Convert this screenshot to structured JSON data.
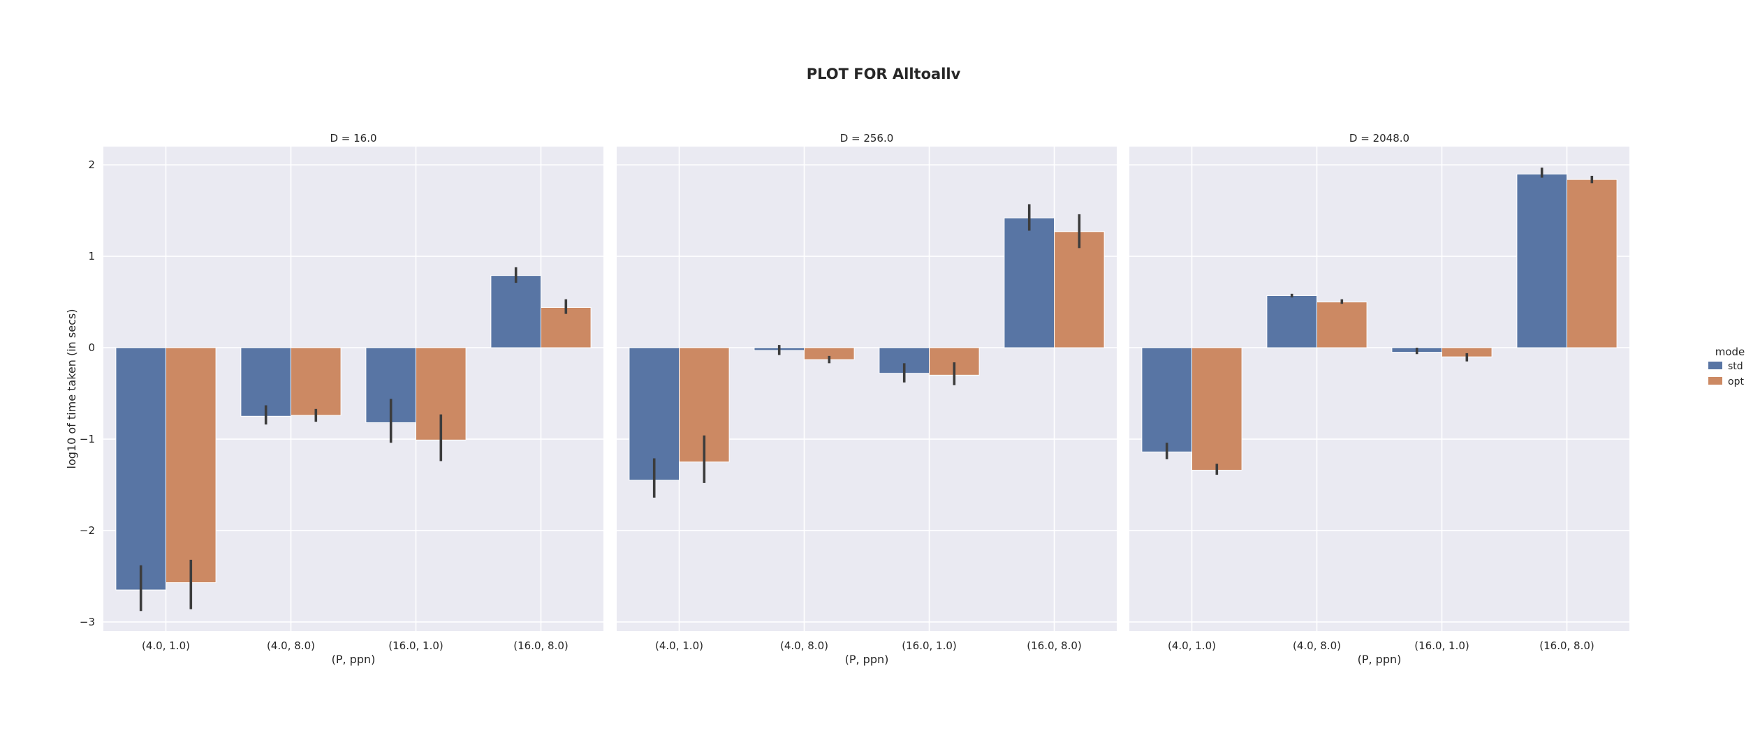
{
  "figure": {
    "title": "PLOT FOR Alltoallv"
  },
  "legend": {
    "title": "mode",
    "placement": "right",
    "entries": [
      {
        "label": "std",
        "color": "#5875a4"
      },
      {
        "label": "opt",
        "color": "#cc8963"
      }
    ]
  },
  "colors": {
    "panel_background": "#eaeaf2",
    "grid": "#ffffff",
    "error_bar": "#3c3c3c"
  },
  "chart_data": [
    {
      "type": "bar",
      "title": "D = 16.0",
      "xlabel": "(P, ppn)",
      "ylabel": "log10 of time taken (in secs)",
      "ylim": [
        -3.1,
        2.2
      ],
      "yticks": [
        2,
        1,
        0,
        -1,
        -2,
        -3
      ],
      "ytick_labels": [
        "2",
        "1",
        "0",
        "−1",
        "−2",
        "−3"
      ],
      "grid": true,
      "categories": [
        "(4.0, 1.0)",
        "(4.0, 8.0)",
        "(16.0, 1.0)",
        "(16.0, 8.0)"
      ],
      "series": [
        {
          "name": "std",
          "values": [
            -2.65,
            -0.75,
            -0.82,
            0.79
          ],
          "err_low": [
            -2.88,
            -0.84,
            -1.04,
            0.71
          ],
          "err_high": [
            -2.38,
            -0.63,
            -0.56,
            0.88
          ]
        },
        {
          "name": "opt",
          "values": [
            -2.57,
            -0.74,
            -1.01,
            0.44
          ],
          "err_low": [
            -2.86,
            -0.81,
            -1.24,
            0.37
          ],
          "err_high": [
            -2.32,
            -0.67,
            -0.73,
            0.53
          ]
        }
      ]
    },
    {
      "type": "bar",
      "title": "D = 256.0",
      "xlabel": "(P, ppn)",
      "ylabel": "",
      "ylim": [
        -3.1,
        2.2
      ],
      "yticks": [
        2,
        1,
        0,
        -1,
        -2,
        -3
      ],
      "ytick_labels": [
        "",
        "",
        "",
        "",
        "",
        ""
      ],
      "grid": true,
      "categories": [
        "(4.0, 1.0)",
        "(4.0, 8.0)",
        "(16.0, 1.0)",
        "(16.0, 8.0)"
      ],
      "series": [
        {
          "name": "std",
          "values": [
            -1.45,
            -0.03,
            -0.28,
            1.42
          ],
          "err_low": [
            -1.64,
            -0.08,
            -0.38,
            1.28
          ],
          "err_high": [
            -1.21,
            0.03,
            -0.17,
            1.57
          ]
        },
        {
          "name": "opt",
          "values": [
            -1.25,
            -0.13,
            -0.3,
            1.27
          ],
          "err_low": [
            -1.48,
            -0.17,
            -0.41,
            1.09
          ],
          "err_high": [
            -0.96,
            -0.09,
            -0.16,
            1.46
          ]
        }
      ]
    },
    {
      "type": "bar",
      "title": "D = 2048.0",
      "xlabel": "(P, ppn)",
      "ylabel": "",
      "ylim": [
        -3.1,
        2.2
      ],
      "yticks": [
        2,
        1,
        0,
        -1,
        -2,
        -3
      ],
      "ytick_labels": [
        "",
        "",
        "",
        "",
        "",
        ""
      ],
      "grid": true,
      "categories": [
        "(4.0, 1.0)",
        "(4.0, 8.0)",
        "(16.0, 1.0)",
        "(16.0, 8.0)"
      ],
      "series": [
        {
          "name": "std",
          "values": [
            -1.14,
            0.57,
            -0.05,
            1.9
          ],
          "err_low": [
            -1.22,
            0.55,
            -0.07,
            1.86
          ],
          "err_high": [
            -1.04,
            0.59,
            0.0,
            1.97
          ]
        },
        {
          "name": "opt",
          "values": [
            -1.34,
            0.5,
            -0.1,
            1.84
          ],
          "err_low": [
            -1.39,
            0.48,
            -0.15,
            1.8
          ],
          "err_high": [
            -1.27,
            0.53,
            -0.06,
            1.88
          ]
        }
      ]
    }
  ]
}
